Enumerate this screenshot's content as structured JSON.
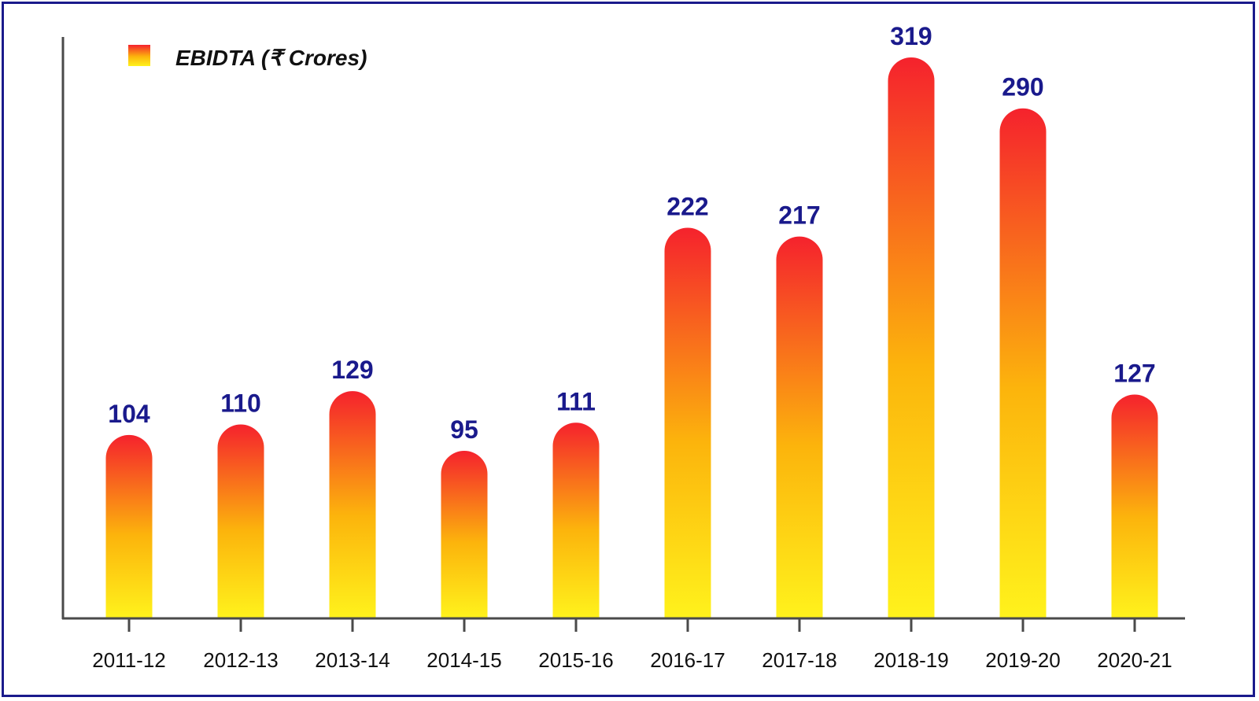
{
  "chart_data": {
    "type": "bar",
    "categories": [
      "2011-12",
      "2012-13",
      "2013-14",
      "2014-15",
      "2015-16",
      "2016-17",
      "2017-18",
      "2018-19",
      "2019-20",
      "2020-21"
    ],
    "series": [
      {
        "name": "EBIDTA (₹ Crores)",
        "values": [
          104,
          110,
          129,
          95,
          111,
          222,
          217,
          319,
          290,
          127
        ]
      }
    ],
    "title": "",
    "xlabel": "",
    "ylabel": "",
    "ylim": [
      0,
      319
    ],
    "grid": false,
    "legend_position": "top-left",
    "data_labels": true
  },
  "colors": {
    "frame": "#1a1a8c",
    "bar_top": "#f5222d",
    "bar_mid": "#fcb40c",
    "bar_bottom": "#fff21c",
    "value_label": "#1a1a8c",
    "axis": "#4a4a4a"
  }
}
